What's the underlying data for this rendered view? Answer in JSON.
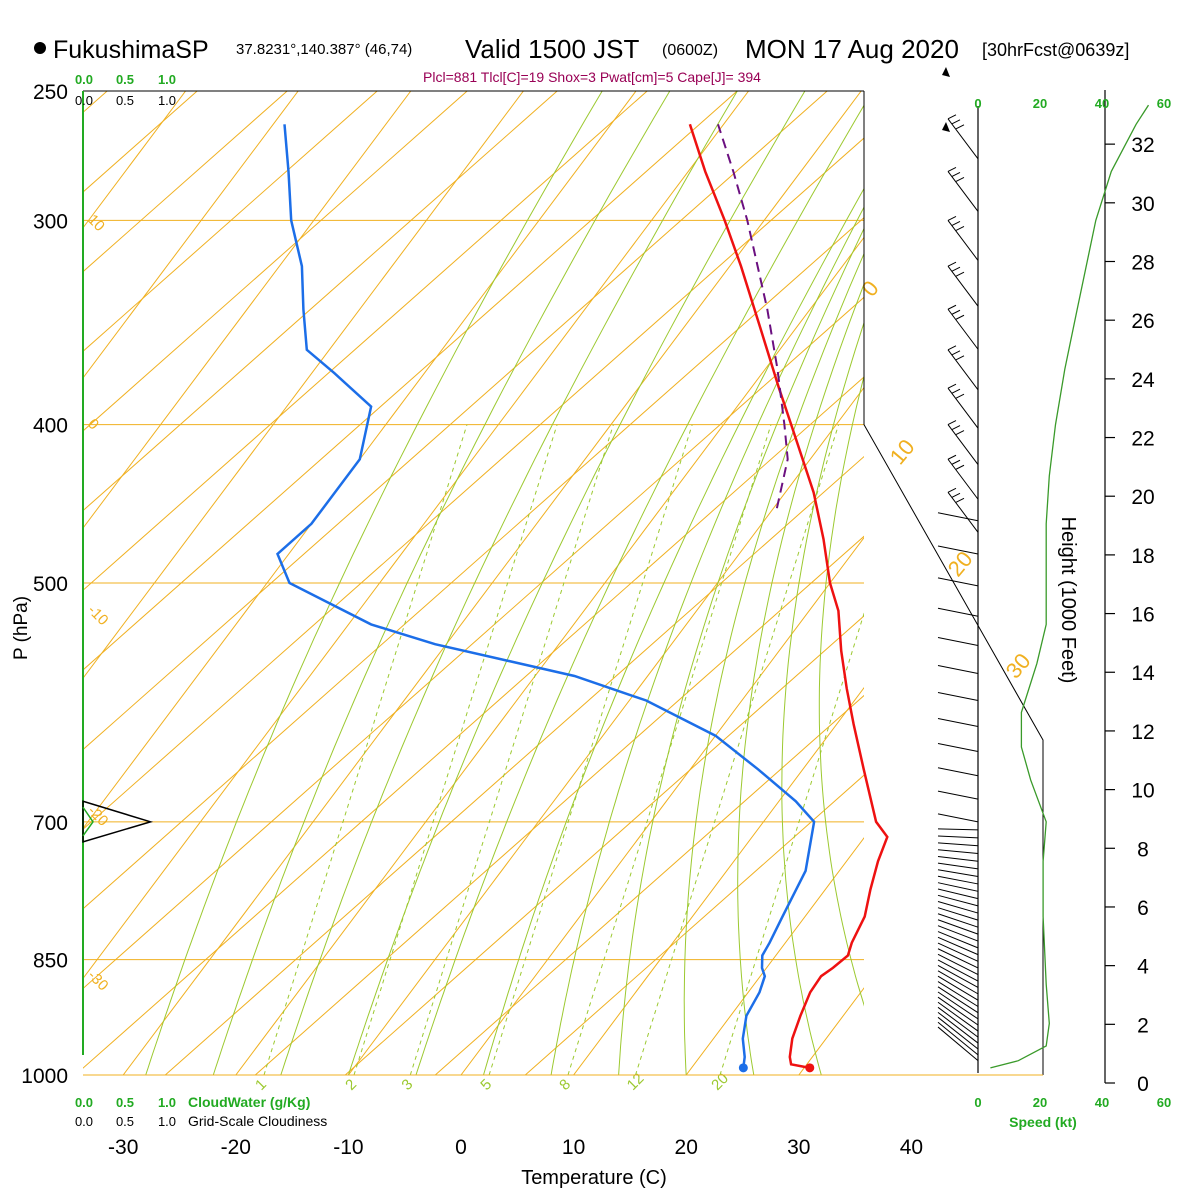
{
  "header": {
    "station": "FukushimaSP",
    "coords": "37.8231°,140.387° (46,74)",
    "valid": "Valid 1500 JST",
    "zulu": "(0600Z)",
    "date": "MON 17 Aug 2020",
    "forecast": "[30hrFcst@0639z]",
    "indices": "Plcl=881 Tlcl[C]=19 Shox=3 Pwat[cm]=5 Cape[J]= 394"
  },
  "colors": {
    "temperature": "#ee1111",
    "dewpoint": "#1c6ee8",
    "parcel": "#6b1080",
    "isotherm": "#f0b020",
    "dry_adiabat": "#f0b020",
    "moist_adiabat": "#9cc930",
    "mixing_ratio": "#9cc930",
    "wind_speed": "#3a9a2a",
    "scale_green": "#22aa22",
    "indices_text": "#990055"
  },
  "chart_data": {
    "type": "line",
    "diagram": "skew-T log-p",
    "xlabel": "Temperature (C)",
    "ylabel": "P (hPa)",
    "right_ylabel": "Height (1000 Feet)",
    "xlim": [
      -34,
      46
    ],
    "ylim": [
      1000,
      250
    ],
    "x_ticks": [
      -30,
      -20,
      -10,
      0,
      10,
      20,
      30,
      40
    ],
    "pressure_ticks": [
      250,
      300,
      400,
      500,
      700,
      850,
      1000
    ],
    "height_ticks": [
      0,
      2,
      4,
      6,
      8,
      10,
      12,
      14,
      16,
      18,
      20,
      22,
      24,
      26,
      28,
      30,
      32
    ],
    "isotherm_labels": [
      0,
      10,
      20,
      30
    ],
    "dry_adiabat_labels": [
      {
        "text": "10",
        "p": 300
      },
      {
        "text": "0",
        "p": 400
      },
      {
        "text": "-10",
        "p": 520
      },
      {
        "text": "-20",
        "p": 690
      },
      {
        "text": "-30",
        "p": 870
      }
    ],
    "mixing_ratio_labels": [
      1,
      2,
      3,
      5,
      8,
      12,
      20
    ],
    "series": [
      {
        "name": "Temperature",
        "points": [
          {
            "p": 990,
            "t": 30.5
          },
          {
            "p": 985,
            "t": 28.6
          },
          {
            "p": 975,
            "t": 28.0
          },
          {
            "p": 950,
            "t": 27.0
          },
          {
            "p": 920,
            "t": 26.2
          },
          {
            "p": 890,
            "t": 25.5
          },
          {
            "p": 870,
            "t": 25.4
          },
          {
            "p": 860,
            "t": 25.9
          },
          {
            "p": 845,
            "t": 26.4
          },
          {
            "p": 830,
            "t": 25.9
          },
          {
            "p": 800,
            "t": 25.3
          },
          {
            "p": 770,
            "t": 24.0
          },
          {
            "p": 740,
            "t": 22.8
          },
          {
            "p": 715,
            "t": 22.0
          },
          {
            "p": 700,
            "t": 20.0
          },
          {
            "p": 650,
            "t": 15.4
          },
          {
            "p": 610,
            "t": 11.5
          },
          {
            "p": 580,
            "t": 8.5
          },
          {
            "p": 550,
            "t": 5.5
          },
          {
            "p": 520,
            "t": 2.6
          },
          {
            "p": 500,
            "t": 0.0
          },
          {
            "p": 470,
            "t": -3.5
          },
          {
            "p": 440,
            "t": -7.5
          },
          {
            "p": 400,
            "t": -14.0
          },
          {
            "p": 380,
            "t": -17.5
          },
          {
            "p": 350,
            "t": -23.0
          },
          {
            "p": 320,
            "t": -29.0
          },
          {
            "p": 300,
            "t": -33.5
          },
          {
            "p": 280,
            "t": -38.5
          },
          {
            "p": 262,
            "t": -43.0
          }
        ]
      },
      {
        "name": "Dewpoint",
        "points": [
          {
            "p": 990,
            "t": 24.6
          },
          {
            "p": 975,
            "t": 24.0
          },
          {
            "p": 950,
            "t": 22.6
          },
          {
            "p": 920,
            "t": 21.4
          },
          {
            "p": 890,
            "t": 21.0
          },
          {
            "p": 870,
            "t": 20.4
          },
          {
            "p": 860,
            "t": 19.6
          },
          {
            "p": 845,
            "t": 18.8
          },
          {
            "p": 830,
            "t": 18.6
          },
          {
            "p": 800,
            "t": 18.0
          },
          {
            "p": 750,
            "t": 17.0
          },
          {
            "p": 700,
            "t": 14.5
          },
          {
            "p": 680,
            "t": 11.5
          },
          {
            "p": 650,
            "t": 6.0
          },
          {
            "p": 620,
            "t": 0.0
          },
          {
            "p": 590,
            "t": -8.5
          },
          {
            "p": 570,
            "t": -16.5
          },
          {
            "p": 545,
            "t": -31.0
          },
          {
            "p": 530,
            "t": -38.0
          },
          {
            "p": 500,
            "t": -48.0
          },
          {
            "p": 480,
            "t": -51.0
          },
          {
            "p": 460,
            "t": -50.0
          },
          {
            "p": 420,
            "t": -50.0
          },
          {
            "p": 390,
            "t": -52.5
          },
          {
            "p": 372,
            "t": -58.0
          },
          {
            "p": 360,
            "t": -62.0
          },
          {
            "p": 340,
            "t": -65.0
          },
          {
            "p": 320,
            "t": -68.0
          },
          {
            "p": 300,
            "t": -72.0
          },
          {
            "p": 280,
            "t": -75.5
          },
          {
            "p": 262,
            "t": -79.0
          }
        ]
      },
      {
        "name": "Parcel",
        "points": [
          {
            "p": 450,
            "t": -9.7
          },
          {
            "p": 420,
            "t": -12.0
          },
          {
            "p": 400,
            "t": -14.6
          },
          {
            "p": 370,
            "t": -18.9
          },
          {
            "p": 340,
            "t": -23.8
          },
          {
            "p": 300,
            "t": -31.5
          },
          {
            "p": 280,
            "t": -36.0
          },
          {
            "p": 262,
            "t": -40.5
          }
        ]
      }
    ],
    "surface_markers": [
      {
        "name": "Temperature",
        "p": 990,
        "t": 30.5
      },
      {
        "name": "Dewpoint",
        "p": 990,
        "t": 24.6
      }
    ],
    "wind_speed_profile": {
      "xlabel": "Speed (kt)",
      "x_ticks": [
        0,
        20,
        40,
        60
      ],
      "points": [
        {
          "p": 990,
          "kt": 4
        },
        {
          "p": 980,
          "kt": 13
        },
        {
          "p": 960,
          "kt": 22
        },
        {
          "p": 930,
          "kt": 23
        },
        {
          "p": 880,
          "kt": 22
        },
        {
          "p": 800,
          "kt": 21
        },
        {
          "p": 740,
          "kt": 21
        },
        {
          "p": 700,
          "kt": 22
        },
        {
          "p": 660,
          "kt": 17
        },
        {
          "p": 630,
          "kt": 14
        },
        {
          "p": 600,
          "kt": 14
        },
        {
          "p": 560,
          "kt": 19
        },
        {
          "p": 530,
          "kt": 22
        },
        {
          "p": 500,
          "kt": 22
        },
        {
          "p": 460,
          "kt": 22
        },
        {
          "p": 430,
          "kt": 23
        },
        {
          "p": 400,
          "kt": 25
        },
        {
          "p": 370,
          "kt": 28
        },
        {
          "p": 340,
          "kt": 32
        },
        {
          "p": 300,
          "kt": 38
        },
        {
          "p": 280,
          "kt": 43
        },
        {
          "p": 262,
          "kt": 51
        },
        {
          "p": 255,
          "kt": 55
        }
      ]
    },
    "cloud_scale_labels": [
      "0.0",
      "0.5",
      "1.0"
    ],
    "cloud_water_label": "CloudWater (g/Kg)",
    "cloudiness_label": "Grid-Scale Cloudiness",
    "cloud_layer": {
      "p_base": 720,
      "p_peak": 700,
      "p_top": 680,
      "peak_fraction": 0.45
    }
  }
}
